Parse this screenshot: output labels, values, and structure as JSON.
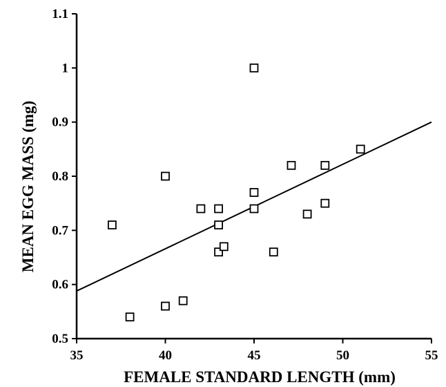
{
  "chart_data": {
    "type": "scatter",
    "title": "",
    "xlabel": "FEMALE STANDARD LENGTH (mm)",
    "ylabel": "MEAN EGG MASS (mg)",
    "xlim": [
      35,
      55
    ],
    "ylim": [
      0.5,
      1.1
    ],
    "x_ticks": [
      35,
      40,
      45,
      50,
      55
    ],
    "x_tick_labels": [
      "35",
      "40",
      "45",
      "50",
      "55"
    ],
    "y_ticks": [
      0.5,
      0.6,
      0.7,
      0.8,
      0.9,
      1.0,
      1.1
    ],
    "y_tick_labels": [
      "0.5",
      "0.6",
      "0.7",
      "0.8",
      "0.9",
      "1",
      "1.1"
    ],
    "grid": false,
    "marker": "open-square",
    "points": [
      {
        "x": 37.0,
        "y": 0.71
      },
      {
        "x": 38.0,
        "y": 0.54
      },
      {
        "x": 40.0,
        "y": 0.8
      },
      {
        "x": 40.0,
        "y": 0.56
      },
      {
        "x": 41.0,
        "y": 0.57
      },
      {
        "x": 42.0,
        "y": 0.74
      },
      {
        "x": 43.0,
        "y": 0.74
      },
      {
        "x": 43.0,
        "y": 0.71
      },
      {
        "x": 43.0,
        "y": 0.66
      },
      {
        "x": 43.3,
        "y": 0.67
      },
      {
        "x": 45.0,
        "y": 1.0
      },
      {
        "x": 45.0,
        "y": 0.77
      },
      {
        "x": 45.0,
        "y": 0.74
      },
      {
        "x": 46.1,
        "y": 0.66
      },
      {
        "x": 47.1,
        "y": 0.82
      },
      {
        "x": 48.0,
        "y": 0.73
      },
      {
        "x": 49.0,
        "y": 0.82
      },
      {
        "x": 49.0,
        "y": 0.75
      },
      {
        "x": 51.0,
        "y": 0.85
      }
    ],
    "fit_line": {
      "x": [
        35,
        55
      ],
      "y": [
        0.588,
        0.9
      ]
    },
    "colors": {
      "marker": "#000000",
      "line": "#000000",
      "axis": "#000000",
      "background": "#ffffff"
    }
  }
}
